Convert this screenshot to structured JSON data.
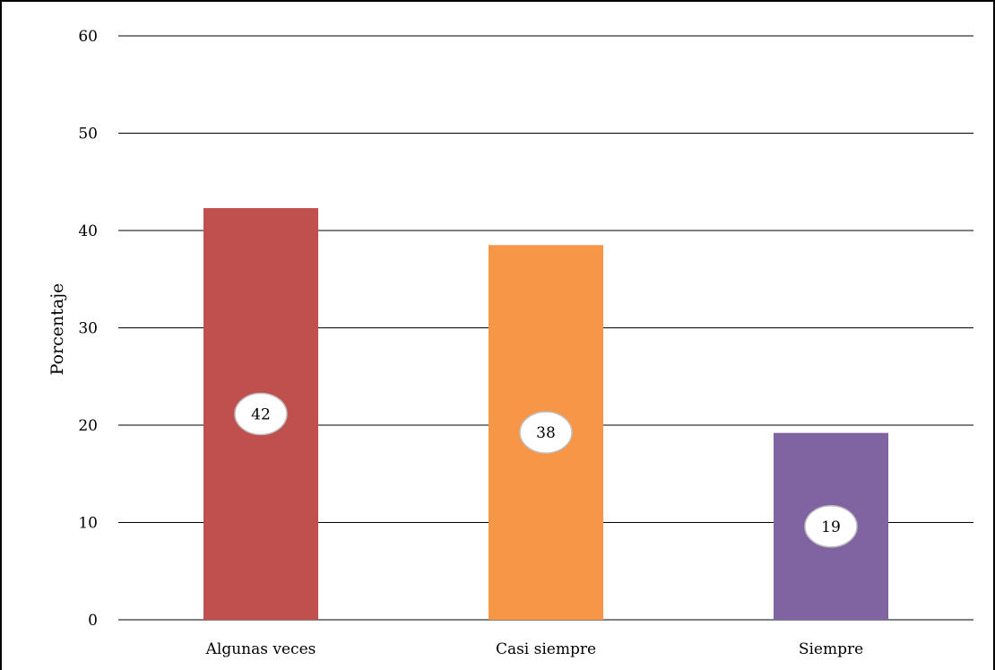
{
  "chart_data": {
    "type": "bar",
    "title": "",
    "xlabel": "",
    "ylabel": "Porcentaje",
    "categories": [
      "Algunas veces",
      "Casi siempre",
      "Siempre"
    ],
    "values": [
      42.3,
      38.5,
      19.2
    ],
    "data_labels": [
      "42",
      "38",
      "19"
    ],
    "colors": [
      "#C0504D",
      "#F79646",
      "#8064A2"
    ],
    "ylim": [
      0,
      60
    ],
    "yticks": [
      0,
      10,
      20,
      30,
      40,
      50,
      60
    ],
    "grid": true,
    "legend": "none"
  }
}
